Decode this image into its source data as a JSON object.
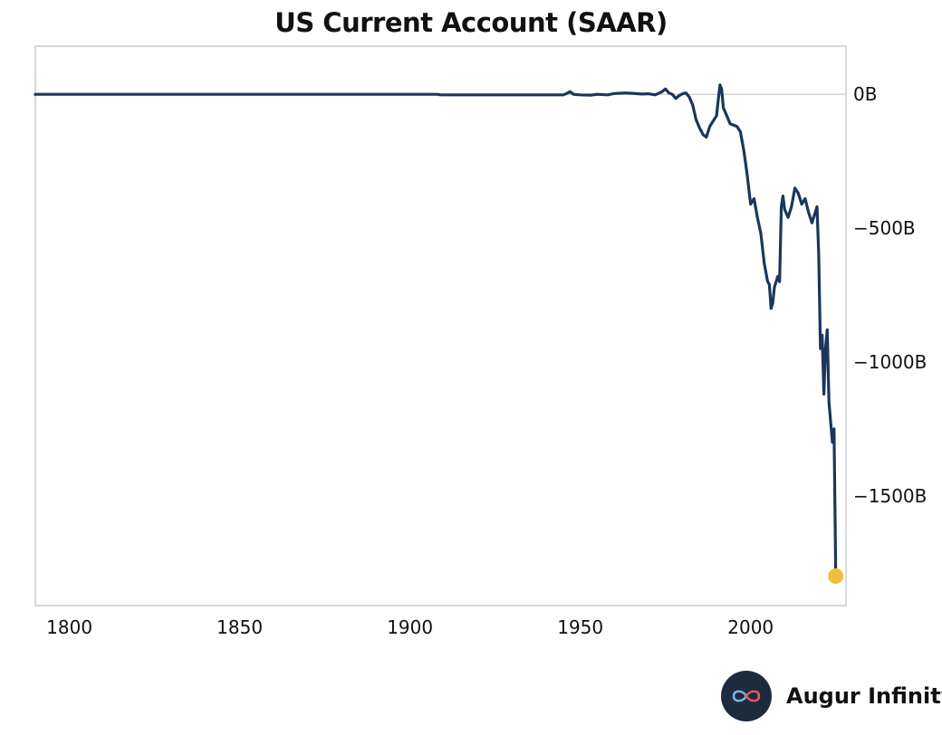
{
  "chart_data": {
    "type": "line",
    "title": "US Current Account (SAAR)",
    "xlabel": "",
    "ylabel": "",
    "xlim": [
      1790,
      2028
    ],
    "ylim": [
      -1910,
      180
    ],
    "x_ticks": [
      "1800",
      "1850",
      "1900",
      "1950",
      "2000"
    ],
    "x_tick_values": [
      1800,
      1850,
      1900,
      1950,
      2000
    ],
    "y_ticks": [
      "0B",
      "−500B",
      "−1000B",
      "−1500B"
    ],
    "y_tick_values": [
      0,
      -500,
      -1000,
      -1500
    ],
    "grid": "horizontal zero line",
    "line_color": "#1b365d",
    "marker_color": "#f0bf3c",
    "series": [
      {
        "x": [
          1790,
          1908,
          1909,
          1945,
          1946,
          1947,
          1948,
          1950,
          1953,
          1955,
          1958,
          1960,
          1963,
          1965,
          1968,
          1970,
          1972,
          1974,
          1975,
          1976,
          1977,
          1978,
          1979,
          1980,
          1981,
          1982,
          1983,
          1984,
          1985,
          1986,
          1987,
          1988,
          1989,
          1990,
          1990.5,
          1991,
          1991.5,
          1992,
          1993,
          1994,
          1995,
          1996,
          1997,
          1998,
          1999,
          2000,
          2001,
          2002,
          2003,
          2004,
          2005,
          2005.5,
          2006,
          2006.5,
          2007,
          2008,
          2008.5,
          2009,
          2009.5,
          2010,
          2011,
          2012,
          2013,
          2014,
          2015,
          2016,
          2017,
          2018,
          2019,
          2019.5,
          2020,
          2020.5,
          2021,
          2021.5,
          2022,
          2022.5,
          2023,
          2024,
          2024.5,
          2025
        ],
        "values": [
          0,
          0,
          -2,
          -2,
          3,
          10,
          0,
          -2,
          -3,
          0,
          -2,
          3,
          5,
          4,
          1,
          2,
          -2,
          10,
          20,
          5,
          0,
          -15,
          -5,
          2,
          5,
          -10,
          -40,
          -95,
          -125,
          -150,
          -160,
          -120,
          -100,
          -80,
          -20,
          35,
          20,
          -50,
          -80,
          -110,
          -115,
          -120,
          -140,
          -210,
          -300,
          -410,
          -390,
          -460,
          -520,
          -630,
          -700,
          -710,
          -800,
          -780,
          -720,
          -680,
          -700,
          -420,
          -380,
          -430,
          -460,
          -420,
          -350,
          -370,
          -410,
          -390,
          -440,
          -480,
          -440,
          -420,
          -600,
          -950,
          -900,
          -1120,
          -950,
          -880,
          -1150,
          -1300,
          -1250,
          -1800
        ]
      }
    ],
    "last_point": {
      "x": 2025,
      "value": -1800
    }
  },
  "brand": {
    "name": "Augur Infinity",
    "icon": "infinity-logo-icon"
  }
}
